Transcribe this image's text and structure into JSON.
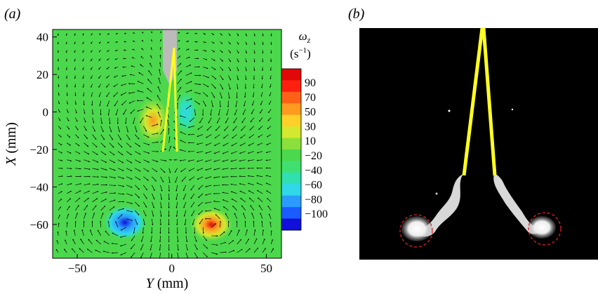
{
  "panels": {
    "a_label": "(a)",
    "b_label": "(b)"
  },
  "colorbar": {
    "title_symbol": "ω",
    "title_subscript": "z",
    "unit_base": "(s",
    "unit_exp": "−1",
    "unit_close": ")",
    "ticks": [
      "90",
      "70",
      "50",
      "30",
      "10",
      "−20",
      "−40",
      "−60",
      "−80",
      "−100"
    ],
    "tick_values": [
      90,
      70,
      50,
      30,
      10,
      -20,
      -40,
      -60,
      -80,
      -100
    ],
    "palette": [
      "#1010d8",
      "#1a5cff",
      "#2a9cff",
      "#30d8e8",
      "#30e0b0",
      "#40e070",
      "#4cd84c",
      "#8ce03c",
      "#d4e830",
      "#ffd028",
      "#ff9a20",
      "#ff6018",
      "#ff2010",
      "#e00808"
    ]
  },
  "colors": {
    "field_green": "#4cd84c",
    "foil_yellow": "#ffff22",
    "obstacle_grey": "#bbbbbb",
    "circle_red": "#e02020"
  },
  "chart_data": {
    "type": "contour-vector",
    "xlabel_var": "Y",
    "xlabel_unit": " (mm)",
    "ylabel_var": "X",
    "ylabel_unit": " (mm)",
    "xlim": [
      -63,
      58
    ],
    "ylim": [
      -78,
      44
    ],
    "xticks": [
      -50,
      0,
      50
    ],
    "xtick_labels": [
      "−50",
      "0",
      "50"
    ],
    "yticks": [
      40,
      20,
      0,
      -20,
      -40,
      -60
    ],
    "ytick_labels": [
      "40",
      "20",
      "0",
      "−20",
      "−40",
      "−60"
    ],
    "vortices": [
      {
        "y": -10,
        "x": -5,
        "omega": 50
      },
      {
        "y": 7,
        "x": 0,
        "omega": -50
      },
      {
        "y": -24,
        "x": -60,
        "omega": -100
      },
      {
        "y": 20,
        "x": -61,
        "omega": 90
      }
    ]
  }
}
